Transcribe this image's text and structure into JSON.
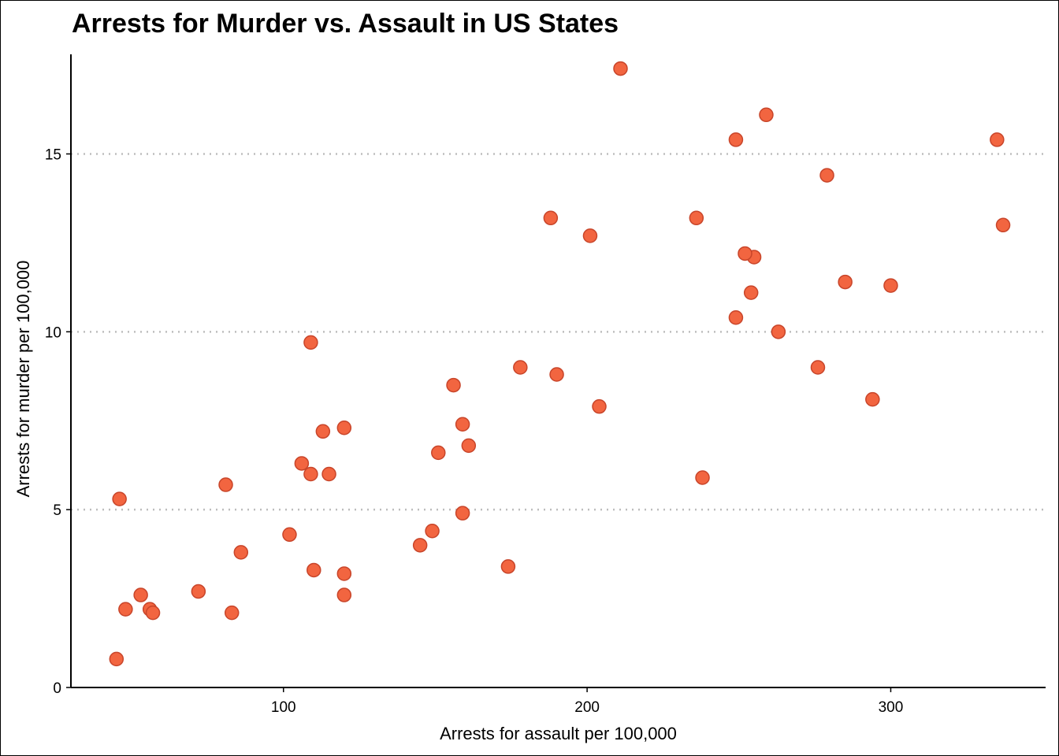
{
  "chart_data": {
    "type": "scatter",
    "title": "Arrests for Murder vs. Assault in US States",
    "xlabel": "Arrests for assault per 100,000",
    "ylabel": "Arrests for murder per 100,000",
    "xlim": [
      30,
      351
    ],
    "ylim": [
      0,
      17.8
    ],
    "xticks": [
      100,
      200,
      300
    ],
    "yticks": [
      0,
      5,
      10,
      15
    ],
    "grid": "horizontal dotted at y ticks",
    "legend": "none",
    "point_fill": "#f26540",
    "point_stroke": "#c8452a",
    "gridline_color": "#bdbdbd",
    "points": [
      {
        "x": 236,
        "y": 13.2
      },
      {
        "x": 263,
        "y": 10.0
      },
      {
        "x": 294,
        "y": 8.1
      },
      {
        "x": 190,
        "y": 8.8
      },
      {
        "x": 276,
        "y": 9.0
      },
      {
        "x": 204,
        "y": 7.9
      },
      {
        "x": 110,
        "y": 3.3
      },
      {
        "x": 238,
        "y": 5.9
      },
      {
        "x": 335,
        "y": 15.4
      },
      {
        "x": 211,
        "y": 17.4
      },
      {
        "x": 46,
        "y": 5.3
      },
      {
        "x": 120,
        "y": 2.6
      },
      {
        "x": 249,
        "y": 10.4
      },
      {
        "x": 113,
        "y": 7.2
      },
      {
        "x": 56,
        "y": 2.2
      },
      {
        "x": 115,
        "y": 6.0
      },
      {
        "x": 109,
        "y": 9.7
      },
      {
        "x": 249,
        "y": 15.4
      },
      {
        "x": 83,
        "y": 2.1
      },
      {
        "x": 300,
        "y": 11.3
      },
      {
        "x": 149,
        "y": 4.4
      },
      {
        "x": 255,
        "y": 12.1
      },
      {
        "x": 72,
        "y": 2.7
      },
      {
        "x": 259,
        "y": 16.1
      },
      {
        "x": 178,
        "y": 9.0
      },
      {
        "x": 109,
        "y": 6.0
      },
      {
        "x": 102,
        "y": 4.3
      },
      {
        "x": 252,
        "y": 12.2
      },
      {
        "x": 57,
        "y": 2.1
      },
      {
        "x": 159,
        "y": 7.4
      },
      {
        "x": 285,
        "y": 11.4
      },
      {
        "x": 254,
        "y": 11.1
      },
      {
        "x": 337,
        "y": 13.0
      },
      {
        "x": 45,
        "y": 0.8
      },
      {
        "x": 120,
        "y": 7.3
      },
      {
        "x": 151,
        "y": 6.6
      },
      {
        "x": 159,
        "y": 4.9
      },
      {
        "x": 106,
        "y": 6.3
      },
      {
        "x": 174,
        "y": 3.4
      },
      {
        "x": 279,
        "y": 14.4
      },
      {
        "x": 86,
        "y": 3.8
      },
      {
        "x": 188,
        "y": 13.2
      },
      {
        "x": 201,
        "y": 12.7
      },
      {
        "x": 120,
        "y": 3.2
      },
      {
        "x": 48,
        "y": 2.2
      },
      {
        "x": 156,
        "y": 8.5
      },
      {
        "x": 145,
        "y": 4.0
      },
      {
        "x": 81,
        "y": 5.7
      },
      {
        "x": 53,
        "y": 2.6
      },
      {
        "x": 161,
        "y": 6.8
      }
    ]
  }
}
